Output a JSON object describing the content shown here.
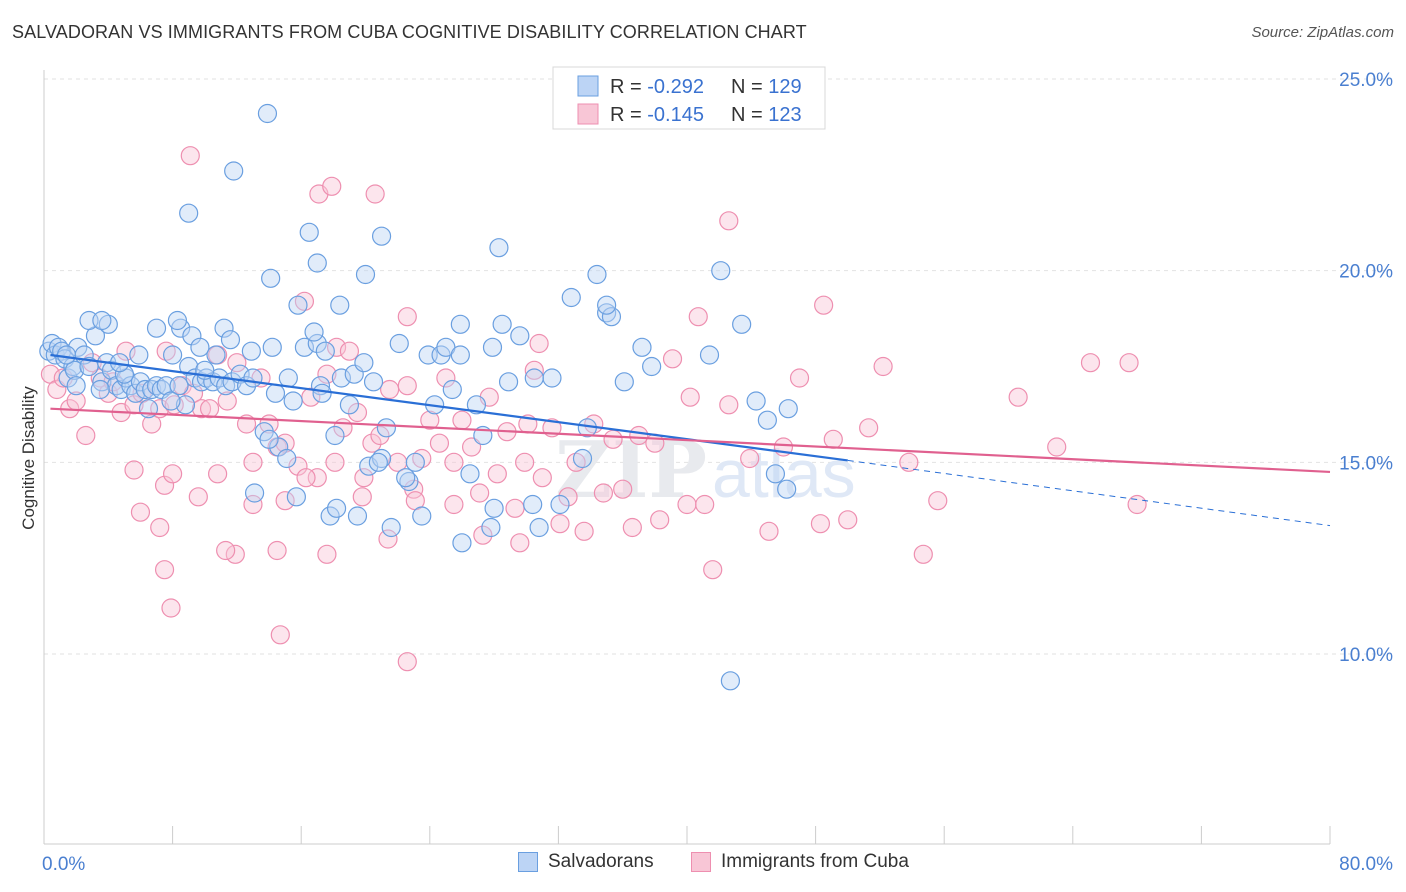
{
  "header": {
    "title": "SALVADORAN VS IMMIGRANTS FROM CUBA COGNITIVE DISABILITY CORRELATION CHART",
    "source": "Source: ZipAtlas.com"
  },
  "watermark": {
    "part1": "ZIP",
    "part2": "atlas"
  },
  "colors": {
    "blue": "#6a9fe0",
    "blue_fill": "#bcd4f5",
    "blue_line": "#2a6fd6",
    "pink": "#ee8fb0",
    "pink_fill": "#f8c6d6",
    "pink_line": "#e0608f",
    "tick_label": "#4a7fd0",
    "grid": "#e2e2e2",
    "axis_text": "#333333"
  },
  "legend": {
    "rows": [
      {
        "r_label": "R = ",
        "r_value": "-0.292",
        "n_label": "N = ",
        "n_value": "129"
      },
      {
        "r_label": "R = ",
        "r_value": "-0.145",
        "n_label": "N = ",
        "n_value": "123"
      }
    ]
  },
  "bottom_legend": {
    "s1": "Salvadorans",
    "s2": "Immigrants from Cuba"
  },
  "chart_data": {
    "type": "scatter",
    "title": "SALVADORAN VS IMMIGRANTS FROM CUBA COGNITIVE DISABILITY CORRELATION CHART",
    "xlabel": "",
    "ylabel": "Cognitive Disability",
    "xlim": [
      0,
      80
    ],
    "ylim": [
      5,
      26.3
    ],
    "x_tick_labels": [
      "0.0%",
      "80.0%"
    ],
    "y_ticks": [
      10,
      15,
      20,
      25
    ],
    "y_tick_labels": [
      "10.0%",
      "15.0%",
      "20.0%",
      "25.0%"
    ],
    "grid": true,
    "legend_position": "top-center",
    "series": [
      {
        "name": "Salvadorans",
        "color": "#6a9fe0",
        "r": -0.292,
        "n": 129,
        "trend": {
          "x0": 0.4,
          "y0": 17.8,
          "x1": 50,
          "y1": 15.05,
          "dashed_to_x": 80,
          "dashed_to_y": 13.35
        },
        "points": [
          [
            0.3,
            17.9
          ],
          [
            0.5,
            18.1
          ],
          [
            0.7,
            17.8
          ],
          [
            0.9,
            18.0
          ],
          [
            1.1,
            17.9
          ],
          [
            1.3,
            17.7
          ],
          [
            1.5,
            17.2
          ],
          [
            1.8,
            17.5
          ],
          [
            1.9,
            17.4
          ],
          [
            2.1,
            18.0
          ],
          [
            1.4,
            17.8
          ],
          [
            2.5,
            17.8
          ],
          [
            2.0,
            17.0
          ],
          [
            2.8,
            17.5
          ],
          [
            3.2,
            18.3
          ],
          [
            3.6,
            17.1
          ],
          [
            3.9,
            17.6
          ],
          [
            4.2,
            17.4
          ],
          [
            4.5,
            17.0
          ],
          [
            4.8,
            16.9
          ],
          [
            5.1,
            17.2
          ],
          [
            5.4,
            17.0
          ],
          [
            5.7,
            16.8
          ],
          [
            6.0,
            17.1
          ],
          [
            6.3,
            16.9
          ],
          [
            6.5,
            16.4
          ],
          [
            6.7,
            16.9
          ],
          [
            7.0,
            17.0
          ],
          [
            7.3,
            16.9
          ],
          [
            7.6,
            17.0
          ],
          [
            8.0,
            17.8
          ],
          [
            8.4,
            17.0
          ],
          [
            8.8,
            16.5
          ],
          [
            9.0,
            17.5
          ],
          [
            9.4,
            17.2
          ],
          [
            9.8,
            17.1
          ],
          [
            10.1,
            17.2
          ],
          [
            10.5,
            17.1
          ],
          [
            10.9,
            17.2
          ],
          [
            11.3,
            17.0
          ],
          [
            11.7,
            17.1
          ],
          [
            12.2,
            17.3
          ],
          [
            12.6,
            17.0
          ],
          [
            13.0,
            17.2
          ],
          [
            5.0,
            17.3
          ],
          [
            7.9,
            16.6
          ],
          [
            3.5,
            16.9
          ],
          [
            4.0,
            18.6
          ],
          [
            8.5,
            18.5
          ],
          [
            8.3,
            18.7
          ],
          [
            9.2,
            18.3
          ],
          [
            10.0,
            17.4
          ],
          [
            11.2,
            18.5
          ],
          [
            11.6,
            18.2
          ],
          [
            9.7,
            18.0
          ],
          [
            7.0,
            18.5
          ],
          [
            5.9,
            17.8
          ],
          [
            2.8,
            18.7
          ],
          [
            3.6,
            18.7
          ],
          [
            4.7,
            17.6
          ],
          [
            10.7,
            17.8
          ],
          [
            12.9,
            17.9
          ],
          [
            14.2,
            18.0
          ],
          [
            13.7,
            15.8
          ],
          [
            14.4,
            16.8
          ],
          [
            14.6,
            15.4
          ],
          [
            15.2,
            17.2
          ],
          [
            15.5,
            16.6
          ],
          [
            13.1,
            14.2
          ],
          [
            14.0,
            15.6
          ],
          [
            15.1,
            15.1
          ],
          [
            15.7,
            14.1
          ],
          [
            16.2,
            18.0
          ],
          [
            17.0,
            18.1
          ],
          [
            16.8,
            18.4
          ],
          [
            17.2,
            17.0
          ],
          [
            17.5,
            17.9
          ],
          [
            18.1,
            15.7
          ],
          [
            18.5,
            17.2
          ],
          [
            19.0,
            16.5
          ],
          [
            19.3,
            17.3
          ],
          [
            19.9,
            17.6
          ],
          [
            20.5,
            17.1
          ],
          [
            20.2,
            14.9
          ],
          [
            21.0,
            15.1
          ],
          [
            21.3,
            15.9
          ],
          [
            22.1,
            18.1
          ],
          [
            22.7,
            14.5
          ],
          [
            23.1,
            15.0
          ],
          [
            23.9,
            17.8
          ],
          [
            24.3,
            16.5
          ],
          [
            24.7,
            17.8
          ],
          [
            25.0,
            18.0
          ],
          [
            25.4,
            16.9
          ],
          [
            25.9,
            17.8
          ],
          [
            26.5,
            14.7
          ],
          [
            26.9,
            16.5
          ],
          [
            27.3,
            15.7
          ],
          [
            27.9,
            18.0
          ],
          [
            28.5,
            18.6
          ],
          [
            28.9,
            17.1
          ],
          [
            29.6,
            18.3
          ],
          [
            30.4,
            13.9
          ],
          [
            30.8,
            13.3
          ],
          [
            31.6,
            17.2
          ],
          [
            32.1,
            13.9
          ],
          [
            33.5,
            15.1
          ],
          [
            33.8,
            15.9
          ],
          [
            35.0,
            18.9
          ],
          [
            35.3,
            18.8
          ],
          [
            36.1,
            17.1
          ],
          [
            37.2,
            18.0
          ],
          [
            37.8,
            17.5
          ],
          [
            42.1,
            20.0
          ],
          [
            44.3,
            16.6
          ],
          [
            45.0,
            16.1
          ],
          [
            45.5,
            14.7
          ],
          [
            46.2,
            14.3
          ],
          [
            41.4,
            17.8
          ],
          [
            17.3,
            16.8
          ],
          [
            17.8,
            13.6
          ],
          [
            18.2,
            13.8
          ],
          [
            19.5,
            13.6
          ],
          [
            20.8,
            15.0
          ],
          [
            21.6,
            13.3
          ],
          [
            22.5,
            14.6
          ],
          [
            23.5,
            13.6
          ],
          [
            26.0,
            12.9
          ],
          [
            27.8,
            13.3
          ],
          [
            28.0,
            13.8
          ],
          [
            21.0,
            20.9
          ],
          [
            20.0,
            19.9
          ],
          [
            18.4,
            19.1
          ],
          [
            17.0,
            20.2
          ],
          [
            16.5,
            21.0
          ],
          [
            15.8,
            19.1
          ],
          [
            14.1,
            19.8
          ],
          [
            13.9,
            24.1
          ],
          [
            11.8,
            22.6
          ],
          [
            9.0,
            21.5
          ],
          [
            25.9,
            18.6
          ],
          [
            35.0,
            19.1
          ],
          [
            30.5,
            17.2
          ],
          [
            32.8,
            19.3
          ],
          [
            34.4,
            19.9
          ],
          [
            43.4,
            18.6
          ],
          [
            46.3,
            16.4
          ],
          [
            42.7,
            9.3
          ],
          [
            28.3,
            20.6
          ]
        ]
      },
      {
        "name": "Immigrants from Cuba",
        "color": "#ee8fb0",
        "r": -0.145,
        "n": 123,
        "trend": {
          "x0": 0.4,
          "y0": 16.4,
          "x1": 80,
          "y1": 14.75
        },
        "points": [
          [
            0.4,
            17.3
          ],
          [
            0.8,
            16.9
          ],
          [
            1.2,
            17.2
          ],
          [
            1.6,
            16.4
          ],
          [
            2.0,
            16.6
          ],
          [
            2.6,
            15.7
          ],
          [
            3.0,
            17.6
          ],
          [
            3.5,
            17.2
          ],
          [
            4.0,
            16.8
          ],
          [
            4.3,
            17.1
          ],
          [
            4.8,
            16.3
          ],
          [
            5.1,
            17.9
          ],
          [
            5.6,
            16.5
          ],
          [
            6.1,
            16.8
          ],
          [
            6.7,
            16.0
          ],
          [
            7.2,
            16.4
          ],
          [
            7.6,
            17.9
          ],
          [
            8.1,
            16.5
          ],
          [
            8.6,
            17.0
          ],
          [
            9.3,
            16.8
          ],
          [
            9.8,
            16.4
          ],
          [
            10.3,
            16.4
          ],
          [
            10.8,
            17.8
          ],
          [
            11.4,
            16.6
          ],
          [
            12.0,
            17.6
          ],
          [
            12.6,
            16.0
          ],
          [
            13.0,
            15.0
          ],
          [
            13.5,
            17.2
          ],
          [
            14.0,
            16.0
          ],
          [
            14.5,
            15.4
          ],
          [
            15.0,
            15.5
          ],
          [
            15.8,
            14.9
          ],
          [
            16.2,
            19.2
          ],
          [
            16.6,
            16.7
          ],
          [
            17.0,
            14.6
          ],
          [
            17.6,
            17.3
          ],
          [
            18.2,
            18.0
          ],
          [
            18.6,
            15.9
          ],
          [
            19.0,
            17.9
          ],
          [
            19.5,
            16.3
          ],
          [
            19.9,
            14.6
          ],
          [
            20.4,
            15.5
          ],
          [
            20.9,
            15.7
          ],
          [
            21.5,
            16.9
          ],
          [
            22.0,
            15.0
          ],
          [
            22.6,
            17.0
          ],
          [
            23.0,
            14.3
          ],
          [
            23.5,
            15.1
          ],
          [
            24.0,
            16.1
          ],
          [
            24.6,
            15.5
          ],
          [
            25.0,
            17.2
          ],
          [
            25.5,
            15.0
          ],
          [
            26.0,
            16.1
          ],
          [
            26.6,
            15.4
          ],
          [
            27.1,
            14.2
          ],
          [
            27.7,
            16.7
          ],
          [
            28.2,
            14.7
          ],
          [
            28.8,
            15.8
          ],
          [
            29.3,
            13.8
          ],
          [
            29.9,
            15.0
          ],
          [
            30.5,
            17.4
          ],
          [
            31.0,
            14.6
          ],
          [
            31.6,
            15.9
          ],
          [
            32.1,
            13.4
          ],
          [
            32.6,
            14.1
          ],
          [
            33.1,
            15.0
          ],
          [
            33.6,
            13.2
          ],
          [
            34.2,
            16.0
          ],
          [
            34.8,
            14.2
          ],
          [
            35.4,
            15.6
          ],
          [
            36.0,
            14.3
          ],
          [
            36.6,
            13.3
          ],
          [
            37.0,
            15.7
          ],
          [
            38.0,
            15.5
          ],
          [
            38.3,
            13.5
          ],
          [
            39.1,
            17.7
          ],
          [
            40.0,
            13.9
          ],
          [
            40.2,
            16.7
          ],
          [
            41.1,
            13.9
          ],
          [
            41.6,
            12.2
          ],
          [
            42.6,
            16.5
          ],
          [
            43.9,
            15.1
          ],
          [
            45.1,
            13.2
          ],
          [
            46.0,
            15.4
          ],
          [
            47.0,
            17.2
          ],
          [
            48.3,
            13.4
          ],
          [
            49.1,
            15.6
          ],
          [
            50.0,
            13.5
          ],
          [
            51.3,
            15.9
          ],
          [
            52.2,
            17.5
          ],
          [
            53.8,
            15.0
          ],
          [
            54.7,
            12.6
          ],
          [
            55.6,
            14.0
          ],
          [
            60.6,
            16.7
          ],
          [
            63.0,
            15.4
          ],
          [
            65.1,
            17.6
          ],
          [
            67.5,
            17.6
          ],
          [
            68.0,
            13.9
          ],
          [
            9.1,
            23.0
          ],
          [
            14.5,
            12.7
          ],
          [
            11.9,
            12.6
          ],
          [
            11.3,
            12.7
          ],
          [
            7.2,
            13.3
          ],
          [
            6.0,
            13.7
          ],
          [
            5.6,
            14.8
          ],
          [
            7.5,
            14.4
          ],
          [
            8.0,
            14.7
          ],
          [
            9.6,
            14.1
          ],
          [
            10.8,
            14.7
          ],
          [
            13.0,
            13.9
          ],
          [
            15.0,
            14.0
          ],
          [
            16.3,
            14.6
          ],
          [
            17.6,
            12.6
          ],
          [
            18.1,
            15.0
          ],
          [
            19.8,
            14.1
          ],
          [
            21.4,
            13.0
          ],
          [
            23.1,
            14.0
          ],
          [
            25.5,
            13.9
          ],
          [
            27.3,
            13.1
          ],
          [
            29.6,
            12.9
          ],
          [
            30.1,
            16.0
          ],
          [
            17.1,
            22.0
          ],
          [
            17.9,
            22.2
          ],
          [
            20.6,
            22.0
          ],
          [
            22.6,
            9.8
          ],
          [
            14.7,
            10.5
          ],
          [
            7.9,
            11.2
          ],
          [
            7.5,
            12.2
          ],
          [
            42.6,
            21.3
          ],
          [
            30.8,
            18.1
          ],
          [
            40.7,
            18.8
          ],
          [
            48.5,
            19.1
          ],
          [
            22.6,
            18.8
          ]
        ]
      }
    ]
  }
}
